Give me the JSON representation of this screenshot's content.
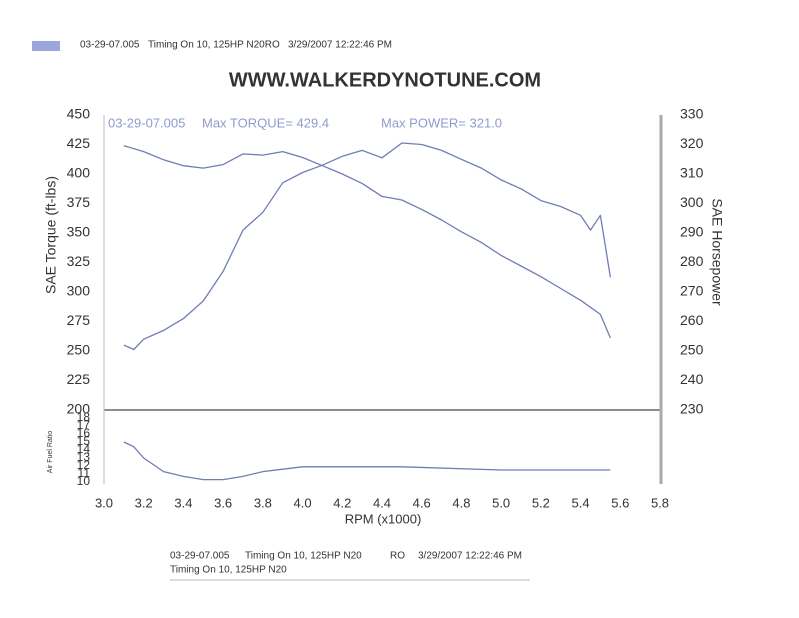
{
  "header": {
    "run": "03-29-07.005",
    "description": "Timing On 10, 125HP N20RO",
    "timestamp": "3/29/2007 12:22:46 PM"
  },
  "footer": {
    "run": "03-29-07.005",
    "description": "Timing On 10, 125HP N20",
    "code": "RO",
    "timestamp": "3/29/2007 12:22:46 PM",
    "line2": "Timing On 10, 125HP N20"
  },
  "chart_data": [
    {
      "type": "line",
      "title": "WWW.WALKERDYNOTUNE.COM",
      "annotations": [
        "03-29-07.005",
        "Max TORQUE= 429.4",
        "Max POWER= 321.0"
      ],
      "ylabel": "SAE Torque (ft-lbs)",
      "y2label": "SAE Horsepower",
      "xlim": [
        3,
        5.8
      ],
      "ylim": [
        200,
        450
      ],
      "yticks": [
        200,
        225,
        250,
        275,
        300,
        325,
        350,
        375,
        400,
        425,
        450
      ],
      "y2lim": [
        230,
        330
      ],
      "y2ticks": [
        230,
        240,
        250,
        260,
        270,
        280,
        290,
        300,
        310,
        320,
        330
      ],
      "series": [
        {
          "color": "#6f7db3",
          "x": [
            3.1,
            3.2,
            3.3,
            3.4,
            3.5,
            3.6,
            3.7,
            3.8,
            3.9,
            4.0,
            4.1,
            4.2,
            4.3,
            4.4,
            4.5,
            4.6,
            4.7,
            4.8,
            4.9,
            5.0,
            5.1,
            5.2,
            5.3,
            5.4,
            5.5,
            5.55
          ],
          "values": [
            424,
            419,
            412,
            407,
            405,
            408,
            417,
            416,
            419,
            414,
            407,
            400,
            392,
            381,
            378,
            370,
            361,
            351,
            342,
            331,
            322,
            313,
            303,
            293,
            281,
            261
          ]
        },
        {
          "color": "#6f7db3",
          "axis": "y2",
          "x": [
            3.1,
            3.15,
            3.2,
            3.3,
            3.4,
            3.5,
            3.6,
            3.7,
            3.8,
            3.9,
            4.0,
            4.1,
            4.2,
            4.3,
            4.4,
            4.5,
            4.6,
            4.7,
            4.8,
            4.9,
            5.0,
            5.1,
            5.2,
            5.3,
            5.4,
            5.45,
            5.5,
            5.55
          ],
          "values": [
            252,
            250.5,
            254,
            257,
            261,
            267,
            277,
            291,
            297,
            307,
            310.5,
            313,
            316,
            318,
            315.5,
            320.5,
            320,
            318,
            315,
            312,
            308,
            305,
            301,
            299,
            296,
            291,
            296,
            275
          ]
        }
      ]
    },
    {
      "type": "line",
      "ylabel": "Air Fuel Ratio",
      "xlabel": "RPM (x1000)",
      "xlim": [
        3,
        5.8
      ],
      "xticks": [
        {
          "value": 3,
          "label": "3.0"
        },
        3.2,
        3.4,
        3.6,
        3.8,
        {
          "value": 4,
          "label": "4.0"
        },
        4.2,
        4.4,
        4.6,
        4.8,
        {
          "value": 5,
          "label": "5.0"
        },
        5.2,
        5.4,
        5.6,
        5.8
      ],
      "ylim": [
        10,
        18
      ],
      "yticks": [
        10,
        11,
        12,
        13,
        14,
        15,
        16,
        17,
        18
      ],
      "series": [
        {
          "color": "#6f7db3",
          "x": [
            3.1,
            3.15,
            3.2,
            3.3,
            3.4,
            3.5,
            3.6,
            3.7,
            3.8,
            3.9,
            4.0,
            4.5,
            5.0,
            5.55
          ],
          "values": [
            15,
            14.4,
            13,
            11.3,
            10.7,
            10.3,
            10.3,
            10.7,
            11.3,
            11.6,
            11.9,
            11.9,
            11.5,
            11.5
          ]
        }
      ]
    }
  ]
}
